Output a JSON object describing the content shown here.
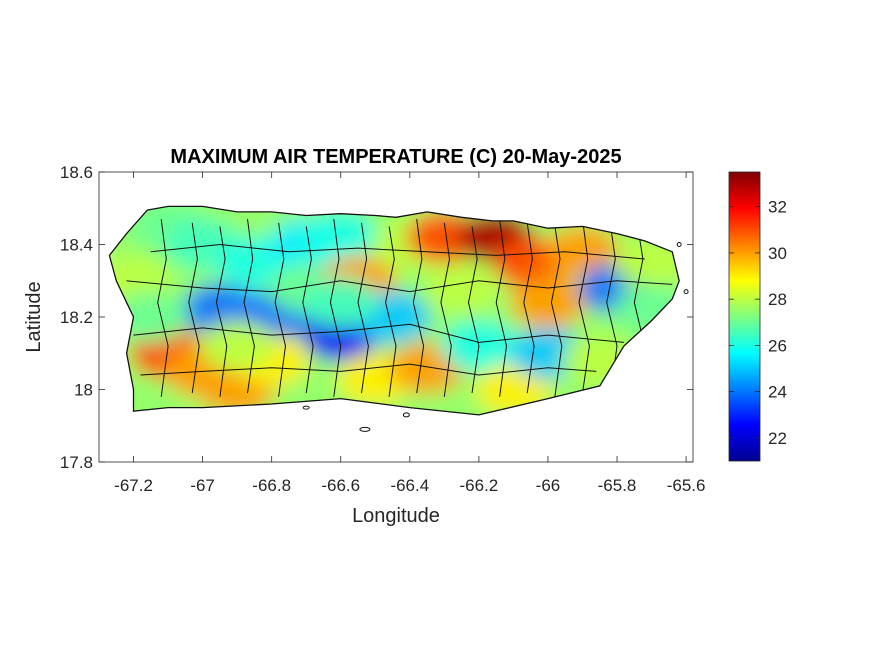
{
  "chart_data": {
    "type": "heatmap",
    "title": "MAXIMUM AIR TEMPERATURE (C) 20-May-2025",
    "xlabel": "Longitude",
    "ylabel": "Latitude",
    "xlim": [
      -67.3,
      -65.58
    ],
    "ylim": [
      17.8,
      18.6
    ],
    "xticks": [
      -67.2,
      -67,
      -66.8,
      -66.6,
      -66.4,
      -66.2,
      -66,
      -65.8,
      -65.6
    ],
    "xtick_labels": [
      "-67.2",
      "-67",
      "-66.8",
      "-66.6",
      "-66.4",
      "-66.2",
      "-66",
      "-65.8",
      "-65.6"
    ],
    "yticks": [
      17.8,
      18,
      18.2,
      18.4,
      18.6
    ],
    "ytick_labels": [
      "17.8",
      "18",
      "18.2",
      "18.4",
      "18.6"
    ],
    "colorbar": {
      "colormap": "jet",
      "clim": [
        21,
        33.5
      ],
      "ticks": [
        22,
        24,
        26,
        28,
        30,
        32
      ],
      "tick_labels": [
        "22",
        "24",
        "26",
        "28",
        "30",
        "32"
      ]
    },
    "grid": false,
    "region_outline": [
      [
        -67.27,
        18.37
      ],
      [
        -67.22,
        18.43
      ],
      [
        -67.16,
        18.495
      ],
      [
        -67.1,
        18.505
      ],
      [
        -67.0,
        18.505
      ],
      [
        -66.9,
        18.49
      ],
      [
        -66.8,
        18.49
      ],
      [
        -66.7,
        18.48
      ],
      [
        -66.6,
        18.485
      ],
      [
        -66.5,
        18.48
      ],
      [
        -66.44,
        18.475
      ],
      [
        -66.35,
        18.49
      ],
      [
        -66.25,
        18.475
      ],
      [
        -66.16,
        18.465
      ],
      [
        -66.1,
        18.465
      ],
      [
        -66.0,
        18.445
      ],
      [
        -65.9,
        18.45
      ],
      [
        -65.8,
        18.43
      ],
      [
        -65.72,
        18.41
      ],
      [
        -65.64,
        18.38
      ],
      [
        -65.62,
        18.3
      ],
      [
        -65.64,
        18.25
      ],
      [
        -65.7,
        18.19
      ],
      [
        -65.78,
        18.12
      ],
      [
        -65.85,
        18.01
      ],
      [
        -66.0,
        17.975
      ],
      [
        -66.2,
        17.93
      ],
      [
        -66.4,
        17.95
      ],
      [
        -66.6,
        17.975
      ],
      [
        -66.8,
        17.96
      ],
      [
        -67.0,
        17.95
      ],
      [
        -67.1,
        17.95
      ],
      [
        -67.2,
        17.94
      ],
      [
        -67.2,
        18.0
      ],
      [
        -67.22,
        18.1
      ],
      [
        -67.2,
        18.2
      ],
      [
        -67.25,
        18.3
      ]
    ],
    "temperature_field": [
      {
        "lon": -67.2,
        "lat": 18.3,
        "value": 28
      },
      {
        "lon": -67.1,
        "lat": 18.45,
        "value": 27
      },
      {
        "lon": -67.1,
        "lat": 18.1,
        "value": 31
      },
      {
        "lon": -67.0,
        "lat": 18.05,
        "value": 30
      },
      {
        "lon": -67.0,
        "lat": 18.4,
        "value": 26.5
      },
      {
        "lon": -66.95,
        "lat": 18.22,
        "value": 24
      },
      {
        "lon": -66.9,
        "lat": 18.0,
        "value": 30
      },
      {
        "lon": -66.85,
        "lat": 18.35,
        "value": 26
      },
      {
        "lon": -66.8,
        "lat": 18.2,
        "value": 24
      },
      {
        "lon": -66.8,
        "lat": 18.08,
        "value": 29
      },
      {
        "lon": -66.7,
        "lat": 18.4,
        "value": 25.5
      },
      {
        "lon": -66.7,
        "lat": 18.28,
        "value": 27
      },
      {
        "lon": -66.6,
        "lat": 18.15,
        "value": 22.5
      },
      {
        "lon": -66.6,
        "lat": 18.42,
        "value": 26
      },
      {
        "lon": -66.55,
        "lat": 18.3,
        "value": 30
      },
      {
        "lon": -66.5,
        "lat": 18.03,
        "value": 29
      },
      {
        "lon": -66.45,
        "lat": 18.2,
        "value": 25
      },
      {
        "lon": -66.4,
        "lat": 18.4,
        "value": 28
      },
      {
        "lon": -66.35,
        "lat": 18.06,
        "value": 30
      },
      {
        "lon": -66.3,
        "lat": 18.42,
        "value": 31
      },
      {
        "lon": -66.25,
        "lat": 18.28,
        "value": 28
      },
      {
        "lon": -66.2,
        "lat": 18.12,
        "value": 26
      },
      {
        "lon": -66.15,
        "lat": 18.42,
        "value": 33
      },
      {
        "lon": -66.1,
        "lat": 18.0,
        "value": 29
      },
      {
        "lon": -66.05,
        "lat": 18.35,
        "value": 31
      },
      {
        "lon": -66.0,
        "lat": 18.1,
        "value": 25
      },
      {
        "lon": -66.0,
        "lat": 18.24,
        "value": 30
      },
      {
        "lon": -65.9,
        "lat": 18.38,
        "value": 30
      },
      {
        "lon": -65.8,
        "lat": 18.28,
        "value": 24
      },
      {
        "lon": -65.85,
        "lat": 18.08,
        "value": 28
      },
      {
        "lon": -65.7,
        "lat": 18.35,
        "value": 28
      },
      {
        "lon": -65.7,
        "lat": 18.22,
        "value": 27
      },
      {
        "lon": -66.6,
        "lat": 18.24,
        "value": 26.5
      },
      {
        "lon": -67.15,
        "lat": 18.2,
        "value": 27
      },
      {
        "lon": -66.9,
        "lat": 18.12,
        "value": 28
      }
    ]
  }
}
